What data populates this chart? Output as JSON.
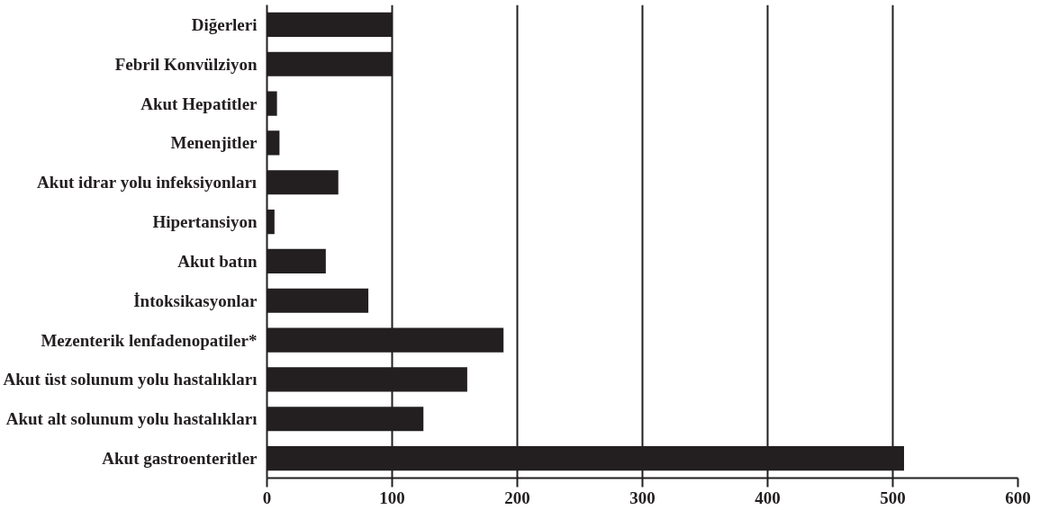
{
  "chart_data": {
    "type": "bar",
    "orientation": "horizontal",
    "categories": [
      "Diğerleri",
      "Febril Konvülziyon",
      "Akut Hepatitler",
      "Menenjitler",
      "Akut idrar yolu infeksiyonları",
      "Hipertansiyon",
      "Akut batın",
      "İntoksikasyonlar",
      "Mezenterik lenfadenopatiler*",
      "Akut üst solunum yolu hastalıkları",
      "Akut alt solunum yolu hastalıkları",
      "Akut gastroenteritler"
    ],
    "values": [
      100,
      100,
      8,
      10,
      57,
      6,
      47,
      81,
      189,
      160,
      125,
      509
    ],
    "color": "#231f20",
    "xlim": [
      0,
      600
    ],
    "xticks": [
      0,
      100,
      200,
      300,
      400,
      500,
      600
    ],
    "grid": "x"
  }
}
